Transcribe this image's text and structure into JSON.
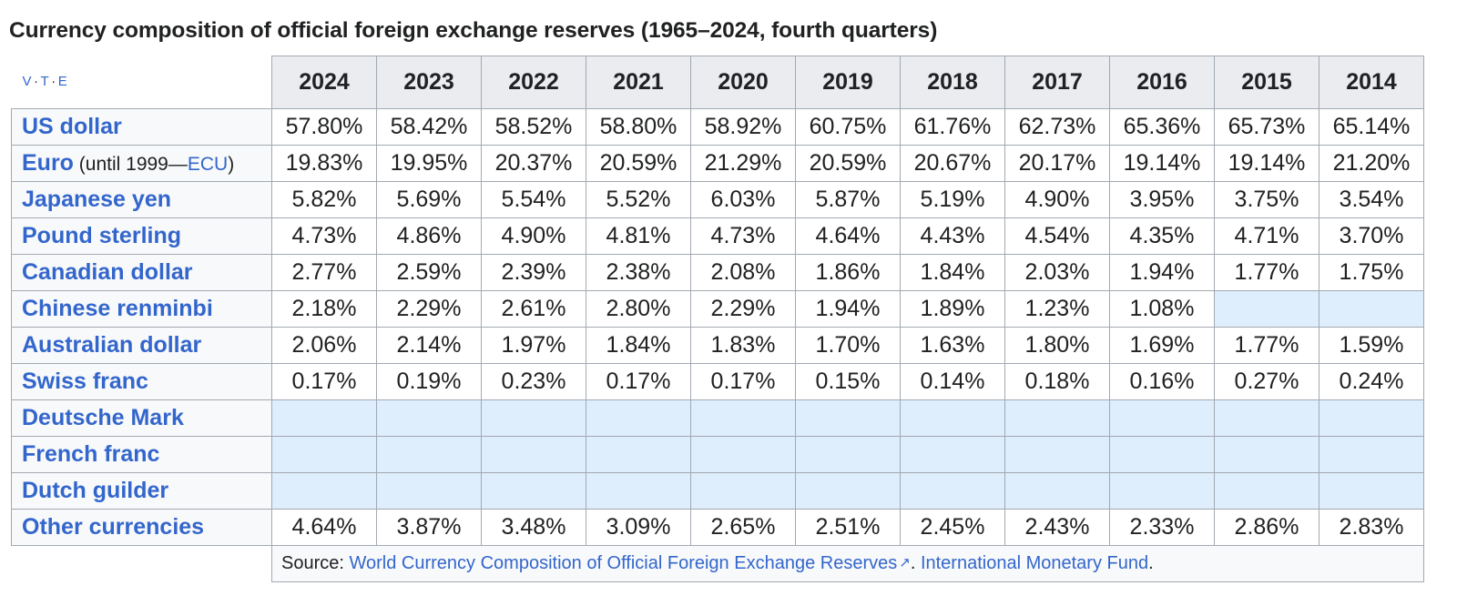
{
  "caption": "Currency composition of official foreign exchange reserves (1965–2024, fourth quarters)",
  "navbox": {
    "v": "V",
    "t": "T",
    "e": "E",
    "sep": "·"
  },
  "years": [
    "2024",
    "2023",
    "2022",
    "2021",
    "2020",
    "2019",
    "2018",
    "2017",
    "2016",
    "2015",
    "2014"
  ],
  "rows": [
    {
      "name": "US dollar",
      "values": [
        "57.80%",
        "58.42%",
        "58.52%",
        "58.80%",
        "58.92%",
        "60.75%",
        "61.76%",
        "62.73%",
        "65.36%",
        "65.73%",
        "65.14%"
      ]
    },
    {
      "name": "Euro",
      "note_prefix": " (until 1999—",
      "note_link": "ECU",
      "note_suffix": ")",
      "values": [
        "19.83%",
        "19.95%",
        "20.37%",
        "20.59%",
        "21.29%",
        "20.59%",
        "20.67%",
        "20.17%",
        "19.14%",
        "19.14%",
        "21.20%"
      ]
    },
    {
      "name": "Japanese yen",
      "values": [
        "5.82%",
        "5.69%",
        "5.54%",
        "5.52%",
        "6.03%",
        "5.87%",
        "5.19%",
        "4.90%",
        "3.95%",
        "3.75%",
        "3.54%"
      ]
    },
    {
      "name": "Pound sterling",
      "values": [
        "4.73%",
        "4.86%",
        "4.90%",
        "4.81%",
        "4.73%",
        "4.64%",
        "4.43%",
        "4.54%",
        "4.35%",
        "4.71%",
        "3.70%"
      ]
    },
    {
      "name": "Canadian dollar",
      "values": [
        "2.77%",
        "2.59%",
        "2.39%",
        "2.38%",
        "2.08%",
        "1.86%",
        "1.84%",
        "2.03%",
        "1.94%",
        "1.77%",
        "1.75%"
      ]
    },
    {
      "name": "Chinese renminbi",
      "values": [
        "2.18%",
        "2.29%",
        "2.61%",
        "2.80%",
        "2.29%",
        "1.94%",
        "1.89%",
        "1.23%",
        "1.08%",
        null,
        null
      ]
    },
    {
      "name": "Australian dollar",
      "values": [
        "2.06%",
        "2.14%",
        "1.97%",
        "1.84%",
        "1.83%",
        "1.70%",
        "1.63%",
        "1.80%",
        "1.69%",
        "1.77%",
        "1.59%"
      ]
    },
    {
      "name": "Swiss franc",
      "values": [
        "0.17%",
        "0.19%",
        "0.23%",
        "0.17%",
        "0.17%",
        "0.15%",
        "0.14%",
        "0.18%",
        "0.16%",
        "0.27%",
        "0.24%"
      ]
    },
    {
      "name": "Deutsche Mark",
      "values": [
        null,
        null,
        null,
        null,
        null,
        null,
        null,
        null,
        null,
        null,
        null
      ]
    },
    {
      "name": "French franc",
      "values": [
        null,
        null,
        null,
        null,
        null,
        null,
        null,
        null,
        null,
        null,
        null
      ]
    },
    {
      "name": "Dutch guilder",
      "values": [
        null,
        null,
        null,
        null,
        null,
        null,
        null,
        null,
        null,
        null,
        null
      ]
    },
    {
      "name": "Other currencies",
      "values": [
        "4.64%",
        "3.87%",
        "3.48%",
        "3.09%",
        "2.65%",
        "2.51%",
        "2.45%",
        "2.43%",
        "2.33%",
        "2.86%",
        "2.83%"
      ]
    }
  ],
  "source": {
    "label": "Source: ",
    "link1": "World Currency Composition of Official Foreign Exchange Reserves",
    "separator": ". ",
    "link2": "International Monetary Fund",
    "end": "."
  },
  "colors": {
    "link": "#3366cc",
    "header_bg": "#eaecf0",
    "rowhead_bg": "#f8f9fa",
    "empty_cell_bg": "#deeefc",
    "border": "#a2a9b1"
  }
}
